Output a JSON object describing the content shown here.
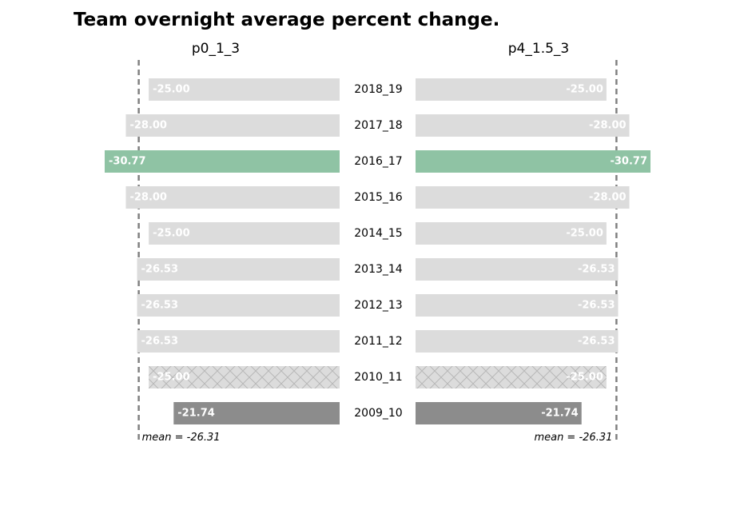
{
  "chart_data": {
    "type": "bar",
    "title": "Team overnight average percent change.",
    "categories": [
      "2018_19",
      "2017_18",
      "2016_17",
      "2015_16",
      "2014_15",
      "2013_14",
      "2012_13",
      "2011_12",
      "2010_11",
      "2009_10"
    ],
    "panels": [
      {
        "name": "p0_1_3",
        "values": [
          -25.0,
          -28.0,
          -30.77,
          -28.0,
          -25.0,
          -26.53,
          -26.53,
          -26.53,
          -25.0,
          -21.74
        ],
        "value_labels": [
          "-25.00",
          "-28.00",
          "-30.77",
          "-28.00",
          "-25.00",
          "-26.53",
          "-26.53",
          "-26.53",
          "-25.00",
          "-21.74"
        ],
        "mean": -26.31,
        "mean_label": "mean = -26.31"
      },
      {
        "name": "p4_1.5_3",
        "values": [
          -25.0,
          -28.0,
          -30.77,
          -28.0,
          -25.0,
          -26.53,
          -26.53,
          -26.53,
          -25.0,
          -21.74
        ],
        "value_labels": [
          "-25.00",
          "-28.00",
          "-30.77",
          "-28.00",
          "-25.00",
          "-26.53",
          "-26.53",
          "-26.53",
          "-25.00",
          "-21.74"
        ],
        "mean": -26.31,
        "mean_label": "mean = -26.31"
      }
    ],
    "bar_styles": [
      "default",
      "default",
      "highlight",
      "default",
      "default",
      "default",
      "default",
      "default",
      "hatched",
      "dark"
    ],
    "colors": {
      "default": "#dcdcdc",
      "highlight": "#8fc3a4",
      "hatched": "#dcdcdc",
      "hatch_line": "#b8b8b8",
      "dark": "#8c8c8c",
      "mean_line": "#808080"
    },
    "grid": false,
    "legend": "none"
  }
}
